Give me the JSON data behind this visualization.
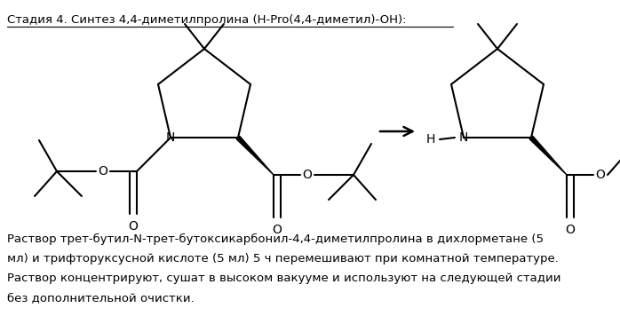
{
  "background_color": "#ffffff",
  "title_text": "Стадия 4. Синтез 4,4-диметилпролина (H-Pro(4,4-диметил)-OH):",
  "body_text_lines": [
    "Раствор трет-бутил-N-трет-бутоксикарбонил-4,4-диметилпролина в дихлорметане (5",
    "мл) и трифторуксусной кислоте (5 мл) 5 ч перемешивают при комнатной температуре.",
    "Раствор концентрируют, сушат в высоком вакууме и используют на следующей стадии",
    "без дополнительной очистки."
  ],
  "figsize": [
    6.98,
    3.56
  ],
  "dpi": 100
}
